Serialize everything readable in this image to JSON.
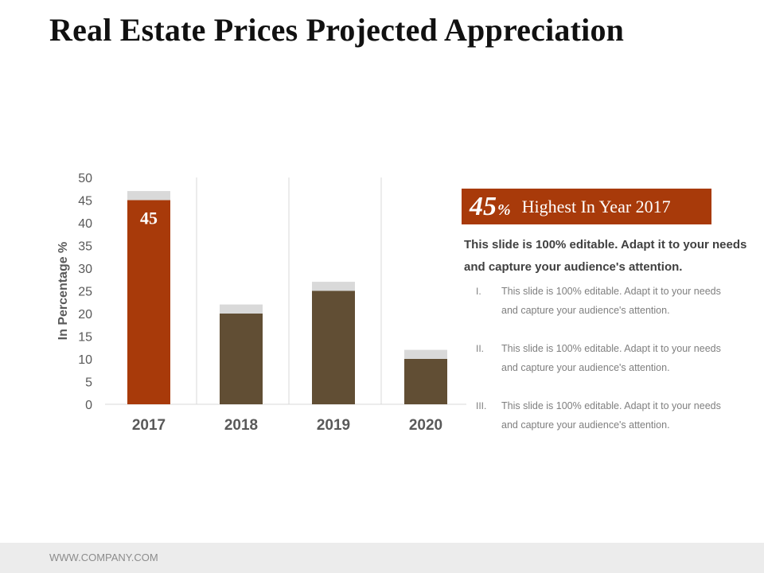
{
  "title": "Real Estate Prices Projected Appreciation",
  "chart_data": {
    "type": "bar",
    "categories": [
      "2017",
      "2018",
      "2019",
      "2020"
    ],
    "values": [
      45,
      20,
      25,
      10
    ],
    "cap_values": [
      47,
      22,
      27,
      12
    ],
    "data_labels": [
      "45",
      "",
      "",
      ""
    ],
    "ylabel": "In Percentage %",
    "xlabel": "",
    "ylim": [
      0,
      50
    ],
    "yticks": [
      0,
      5,
      10,
      15,
      20,
      25,
      30,
      35,
      40,
      45,
      50
    ],
    "grid": "vertical separators",
    "colors": {
      "highlight": "#a83a0a",
      "bar": "#614e34",
      "cap": "#d9d9d9",
      "grid": "#d9d9d9",
      "axis_text": "#595959"
    }
  },
  "callout": {
    "value": "45",
    "unit": "%",
    "label": "Highest In Year 2017"
  },
  "lead_text": "This slide is 100% editable. Adapt it to your needs and capture your audience's attention.",
  "points": [
    {
      "num": "I.",
      "text": "This slide is 100% editable. Adapt it to your needs and capture your audience's attention."
    },
    {
      "num": "II.",
      "text": "This slide is 100% editable. Adapt it to your needs and capture your audience's attention."
    },
    {
      "num": "III.",
      "text": "This slide is 100% editable. Adapt it to your needs and capture your audience's attention."
    }
  ],
  "footer": {
    "text": "WWW.COMPANY.COM"
  }
}
